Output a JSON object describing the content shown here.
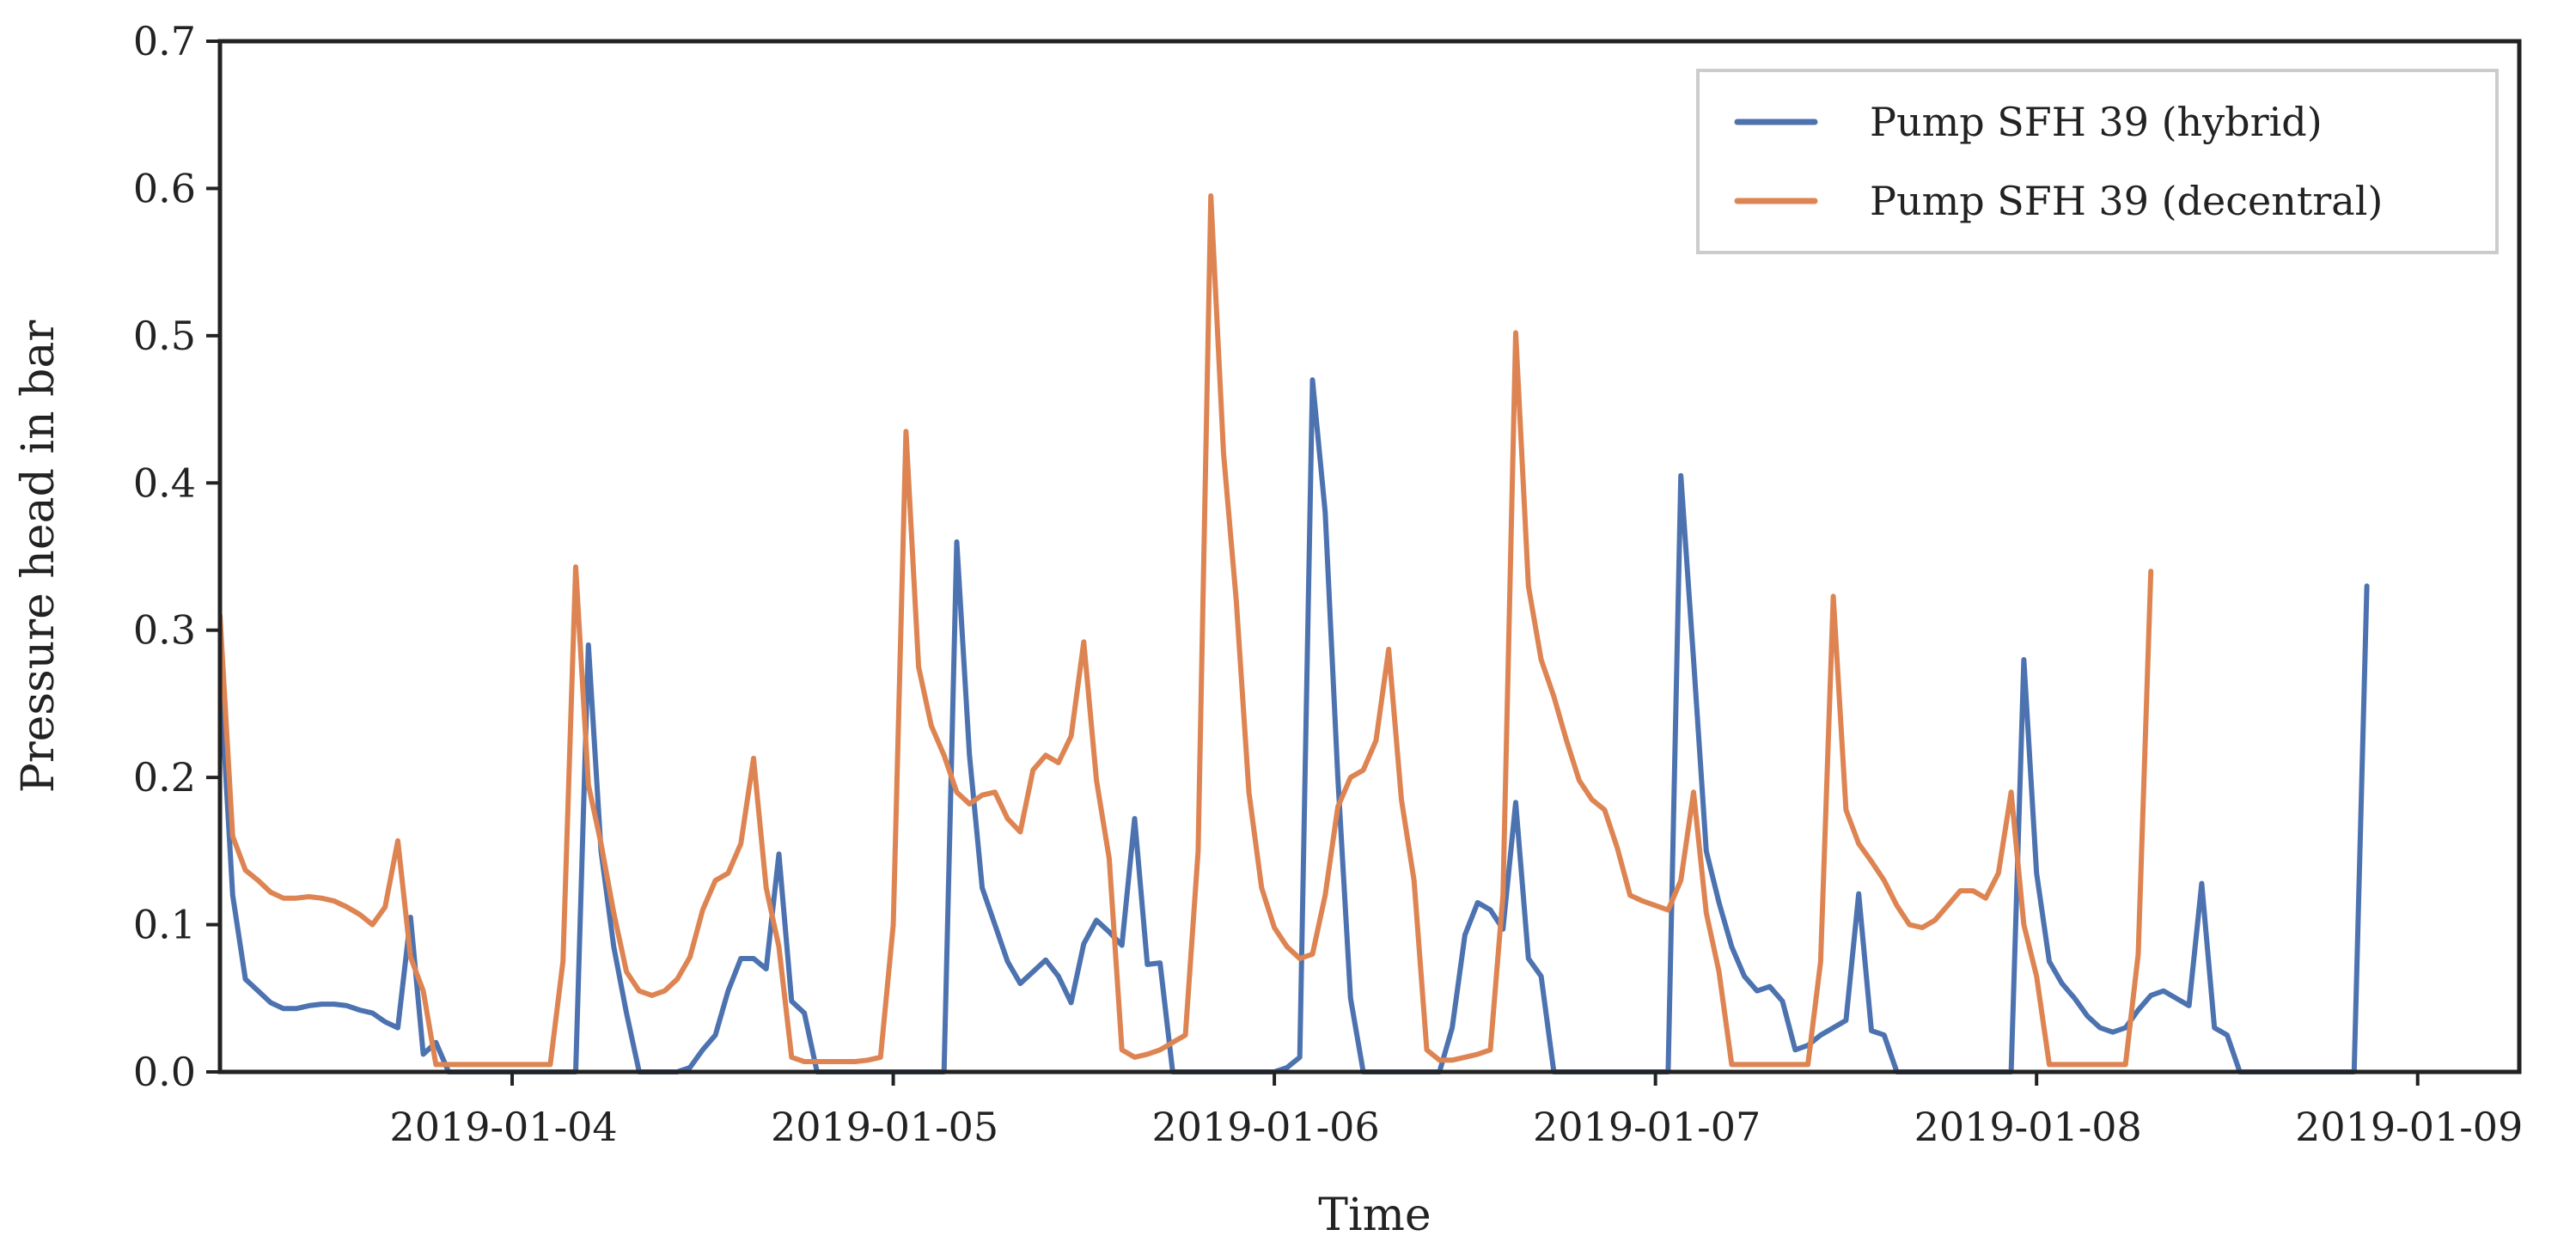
{
  "chart_data": {
    "type": "line",
    "title": "",
    "xlabel": "Time",
    "ylabel": "Pressure head in bar",
    "xlim": [
      0,
      181
    ],
    "ylim": [
      0,
      0.7
    ],
    "y_ticks": [
      0.0,
      0.1,
      0.2,
      0.3,
      0.4,
      0.5,
      0.6,
      0.7
    ],
    "y_tick_labels": [
      "0.0",
      "0.1",
      "0.2",
      "0.3",
      "0.4",
      "0.5",
      "0.6",
      "0.7"
    ],
    "x_ticks": [
      23,
      53,
      83,
      113,
      143,
      173
    ],
    "x_tick_labels": [
      "2019-01-04",
      "2019-01-05",
      "2019-01-06",
      "2019-01-07",
      "2019-01-08",
      "2019-01-09"
    ],
    "x_unit": "hours since 2019-01-03 01:00",
    "grid": false,
    "legend_position": "top-right",
    "colors": {
      "hybrid": "#4c72b0",
      "decentral": "#dd8452",
      "axis": "#222222",
      "legend_border": "#cccccc"
    },
    "series": [
      {
        "name": "Pump SFH 39 (hybrid)",
        "color": "#4c72b0",
        "values": [
          0.27,
          0.12,
          0.063,
          0.055,
          0.047,
          0.043,
          0.043,
          0.045,
          0.046,
          0.046,
          0.045,
          0.042,
          0.04,
          0.034,
          0.03,
          0.105,
          0.012,
          0.02,
          0,
          0,
          0,
          0,
          0,
          0,
          0,
          0,
          0,
          0,
          0,
          0.29,
          0.15,
          0.085,
          0.04,
          0,
          0,
          0,
          0,
          0.003,
          0.015,
          0.025,
          0.055,
          0.077,
          0.077,
          0.07,
          0.148,
          0.048,
          0.04,
          0,
          0,
          0,
          0,
          0,
          0,
          0,
          0,
          0,
          0,
          0,
          0.36,
          0.215,
          0.125,
          0.1,
          0.075,
          0.06,
          0.068,
          0.076,
          0.065,
          0.047,
          0.087,
          0.103,
          0.095,
          0.086,
          0.172,
          0.073,
          0.074,
          0,
          0,
          0,
          0,
          0,
          0,
          0,
          0,
          0,
          0.003,
          0.01,
          0.47,
          0.38,
          0.2,
          0.05,
          0,
          0,
          0,
          0,
          0,
          0,
          0,
          0.03,
          0.093,
          0.115,
          0.11,
          0.097,
          0.183,
          0.077,
          0.065,
          0,
          0,
          0,
          0,
          0,
          0,
          0,
          0,
          0,
          0,
          0.405,
          0.28,
          0.15,
          0.115,
          0.085,
          0.065,
          0.055,
          0.058,
          0.048,
          0.015,
          0.018,
          0.025,
          0.03,
          0.035,
          0.121,
          0.028,
          0.025,
          0,
          0,
          0,
          0,
          0,
          0,
          0,
          0,
          0,
          0,
          0.28,
          0.135,
          0.075,
          0.06,
          0.05,
          0.038,
          0.03,
          0.027,
          0.03,
          0.042,
          0.052,
          0.055,
          0.05,
          0.045,
          0.128,
          0.03,
          0.025,
          0,
          0,
          0,
          0,
          0,
          0,
          0,
          0,
          0,
          0,
          0.33
        ]
      },
      {
        "name": "Pump SFH 39 (decentral)",
        "color": "#dd8452",
        "values": [
          0.31,
          0.16,
          0.137,
          0.13,
          0.122,
          0.118,
          0.118,
          0.119,
          0.118,
          0.116,
          0.112,
          0.107,
          0.1,
          0.112,
          0.157,
          0.078,
          0.055,
          0.005,
          0.005,
          0.005,
          0.005,
          0.005,
          0.005,
          0.005,
          0.005,
          0.005,
          0.005,
          0.075,
          0.343,
          0.195,
          0.155,
          0.108,
          0.068,
          0.055,
          0.052,
          0.055,
          0.063,
          0.078,
          0.11,
          0.13,
          0.135,
          0.155,
          0.213,
          0.125,
          0.085,
          0.01,
          0.007,
          0.007,
          0.007,
          0.007,
          0.007,
          0.008,
          0.01,
          0.1,
          0.435,
          0.275,
          0.235,
          0.215,
          0.19,
          0.182,
          0.188,
          0.19,
          0.172,
          0.163,
          0.205,
          0.215,
          0.21,
          0.228,
          0.292,
          0.198,
          0.145,
          0.015,
          0.01,
          0.012,
          0.015,
          0.02,
          0.025,
          0.15,
          0.595,
          0.42,
          0.32,
          0.19,
          0.125,
          0.098,
          0.085,
          0.077,
          0.08,
          0.12,
          0.18,
          0.2,
          0.205,
          0.225,
          0.287,
          0.185,
          0.13,
          0.015,
          0.008,
          0.008,
          0.01,
          0.012,
          0.015,
          0.12,
          0.502,
          0.33,
          0.28,
          0.255,
          0.225,
          0.198,
          0.185,
          0.178,
          0.152,
          0.12,
          0.116,
          0.113,
          0.11,
          0.13,
          0.19,
          0.108,
          0.068,
          0.005,
          0.005,
          0.005,
          0.005,
          0.005,
          0.005,
          0.005,
          0.075,
          0.323,
          0.178,
          0.155,
          0.143,
          0.13,
          0.113,
          0.1,
          0.098,
          0.103,
          0.113,
          0.123,
          0.123,
          0.118,
          0.135,
          0.19,
          0.1,
          0.065,
          0.005,
          0.005,
          0.005,
          0.005,
          0.005,
          0.005,
          0.005,
          0.08,
          0.34
        ]
      }
    ]
  }
}
